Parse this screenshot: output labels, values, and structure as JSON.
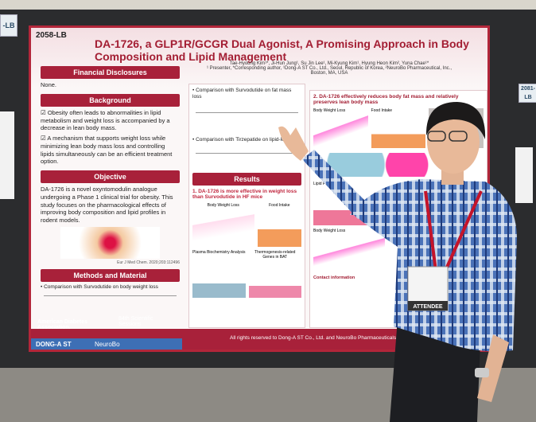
{
  "poster": {
    "id": "2058-LB",
    "title": "DA-1726, a GLP1R/GCGR Dual Agonist, A Promising Approach in Body Composition and Lipid Management",
    "authors": "Tae-Hyoung Kim¹*, Ji-Hun Jung¹, Su Jin Lee¹, Mi-Kyung Kim¹, Hyung Heon Kim², Yuna Chae¹*",
    "affiliations": "¹ Presenter, *Corresponding author, ¹Dong-A ST Co., Ltd., Seoul, Republic of Korea, ²NeuroBo Pharmaceutical, Inc., Boston, MA, USA",
    "left": {
      "financial": {
        "heading": "Financial Disclosures",
        "text": "None."
      },
      "background": {
        "heading": "Background",
        "bullets": [
          "Obesity often leads to abnormalities in lipid metabolism and weight loss is accompanied by a decrease in lean body mass.",
          "A mechanism that supports weight loss while minimizing lean body mass loss and controlling lipids simultaneously can be an efficient treatment option."
        ]
      },
      "objective": {
        "heading": "Objective",
        "text": "DA-1726 is a novel oxyntomodulin analogue undergoing a Phase 1 clinical trial for obesity. This study focuses on the pharmacological effects of improving body composition and lipid profiles in rodent models.",
        "citation": "Eur J Med Chem. 2020;203:112496"
      },
      "methods": {
        "heading": "Methods and Material",
        "bullet": "Comparison with Survodutide on body weight loss"
      }
    },
    "middle": {
      "items": [
        "Comparison with Survodutide on fat mass loss",
        "Comparison with Tirzepatide on lipid-lowering"
      ],
      "results": {
        "heading": "Results",
        "subtitle": "1. DA-1726 is more effective in weight loss than Survodutide in HF mice",
        "panels": [
          "Body Weight Loss",
          "Food Intake",
          "Plasma Biochemistry Analysis",
          "Thermogenesis-related Genes in BAT"
        ]
      }
    },
    "right": {
      "subtitle": "2. DA-1726 effectively reduces body fat mass and relatively preserves lean body mass",
      "panels": [
        "Body Weight Loss",
        "Food Intake",
        "Lipid Profiles",
        "Body Weight Loss"
      ],
      "contact": "Contact information"
    },
    "footer": {
      "rights": "All rights reserved to Dong-A ST Co., Ltd. and NeuroBo Pharmaceuticals, Inc.",
      "ada": "American Diabetes Association.",
      "sessions": "84th Scientific Sessions",
      "logos": [
        "DONG-A ST",
        "NeuroBo"
      ]
    }
  },
  "neighbors": [
    "-LB",
    "2081-LB"
  ],
  "badge": "ATTENDEE"
}
